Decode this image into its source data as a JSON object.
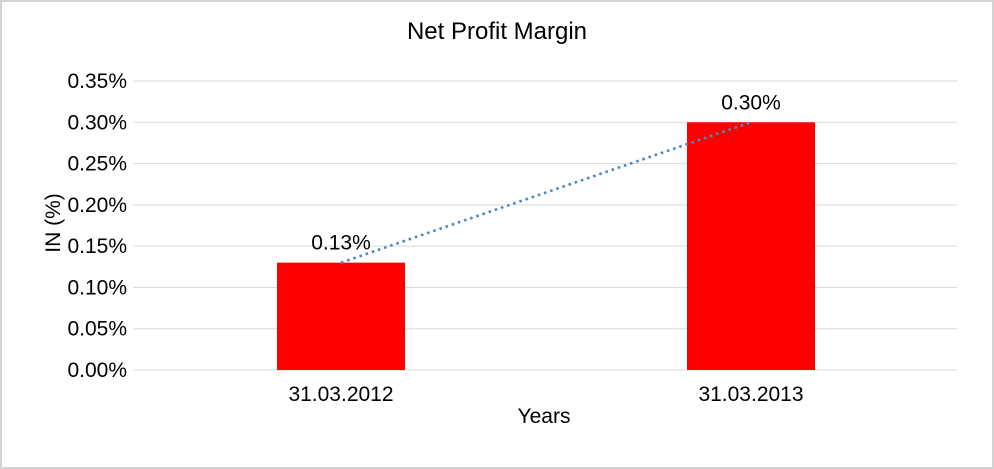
{
  "chart_data": {
    "type": "bar",
    "title": "Net Profit Margin",
    "xlabel": "Years",
    "ylabel": "IN (%)",
    "categories": [
      "31.03.2012",
      "31.03.2013"
    ],
    "values": [
      0.13,
      0.3
    ],
    "data_labels": [
      "0.13%",
      "0.30%"
    ],
    "ylim": [
      0,
      0.35
    ],
    "ytick_step": 0.05,
    "ytick_labels": [
      "0.00%",
      "0.05%",
      "0.10%",
      "0.15%",
      "0.20%",
      "0.25%",
      "0.30%",
      "0.35%"
    ],
    "grid": true,
    "legend": "none",
    "trendline": {
      "style": "dotted",
      "connects": [
        "31.03.2012",
        "31.03.2013"
      ]
    },
    "colors": {
      "bar": "#ff0000",
      "trendline": "#4f86c6",
      "gridline": "#d9d9d9",
      "text": "#000000",
      "frame_border": "#d3d3d3",
      "background": "#ffffff"
    }
  }
}
